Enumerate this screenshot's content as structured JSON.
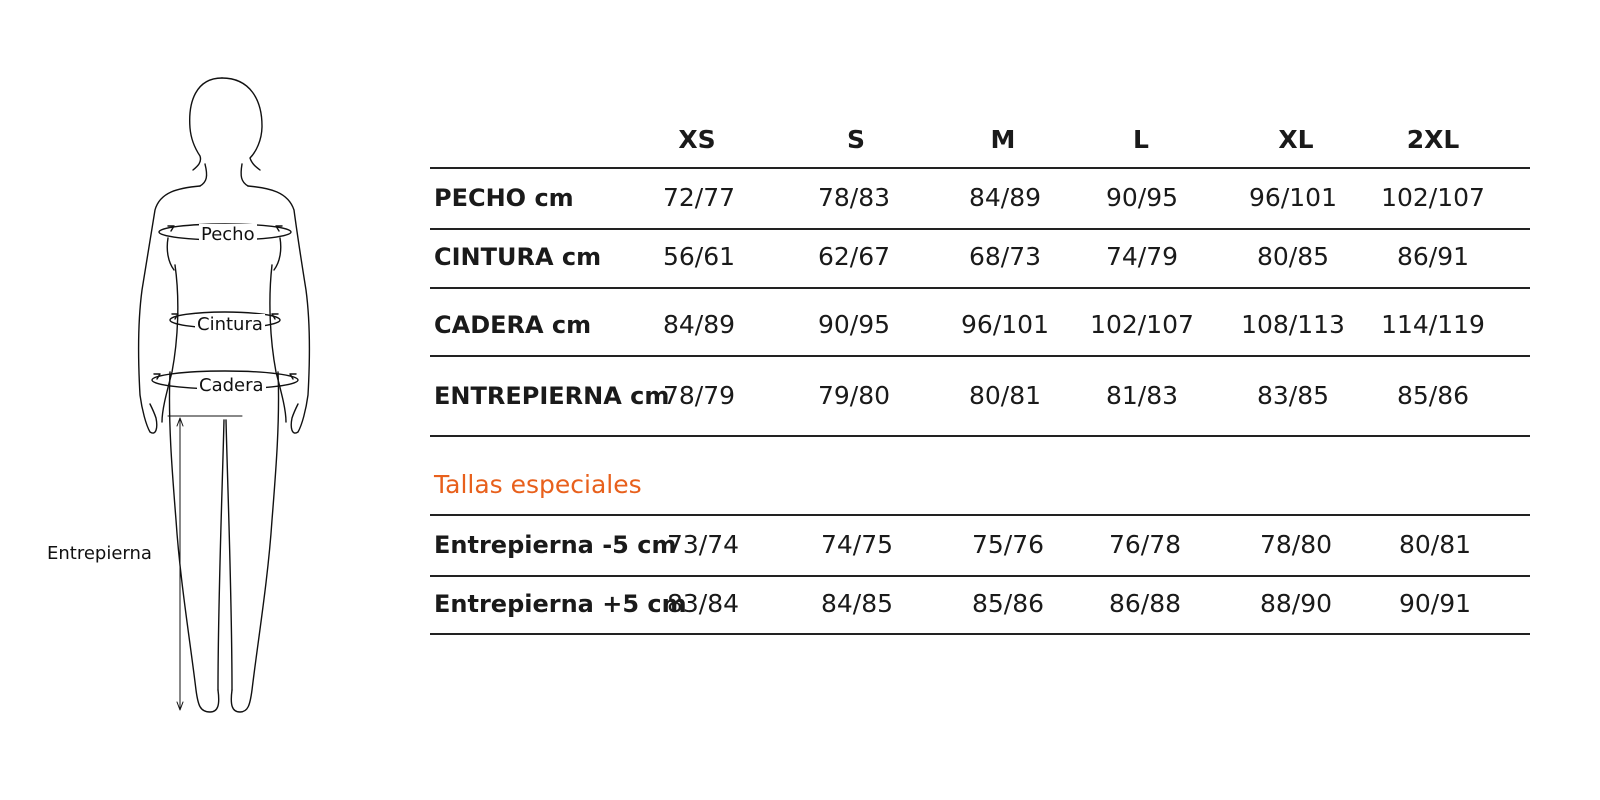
{
  "figure": {
    "labels": {
      "pecho": "Pecho",
      "cintura": "Cintura",
      "cadera": "Cadera",
      "entrepierna": "Entrepierna"
    }
  },
  "table": {
    "sizes": [
      "XS",
      "S",
      "M",
      "L",
      "XL",
      "2XL"
    ],
    "rows": [
      {
        "label": "PECHO  cm",
        "values": [
          "72/77",
          "78/83",
          "84/89",
          "90/95",
          "96/101",
          "102/107"
        ]
      },
      {
        "label": "CINTURA cm",
        "values": [
          "56/61",
          "62/67",
          "68/73",
          "74/79",
          "80/85",
          "86/91"
        ]
      },
      {
        "label": "CADERA cm",
        "values": [
          "84/89",
          "90/95",
          "96/101",
          "102/107",
          "108/113",
          "114/119"
        ]
      },
      {
        "label": "ENTREPIERNA cm",
        "values": [
          "78/79",
          "79/80",
          "80/81",
          "81/83",
          "83/85",
          "85/86"
        ]
      }
    ],
    "special_title": "Tallas especiales",
    "special_rows": [
      {
        "label": "Entrepierna -5 cm",
        "values": [
          "73/74",
          "74/75",
          "75/76",
          "76/78",
          "78/80",
          "80/81"
        ]
      },
      {
        "label": "Entrepierna +5 cm",
        "values": [
          "83/84",
          "84/85",
          "85/86",
          "86/88",
          "88/90",
          "90/91"
        ]
      }
    ]
  },
  "colors": {
    "accent": "#e8601c",
    "rule": "#222222",
    "text": "#1a1a1a"
  }
}
